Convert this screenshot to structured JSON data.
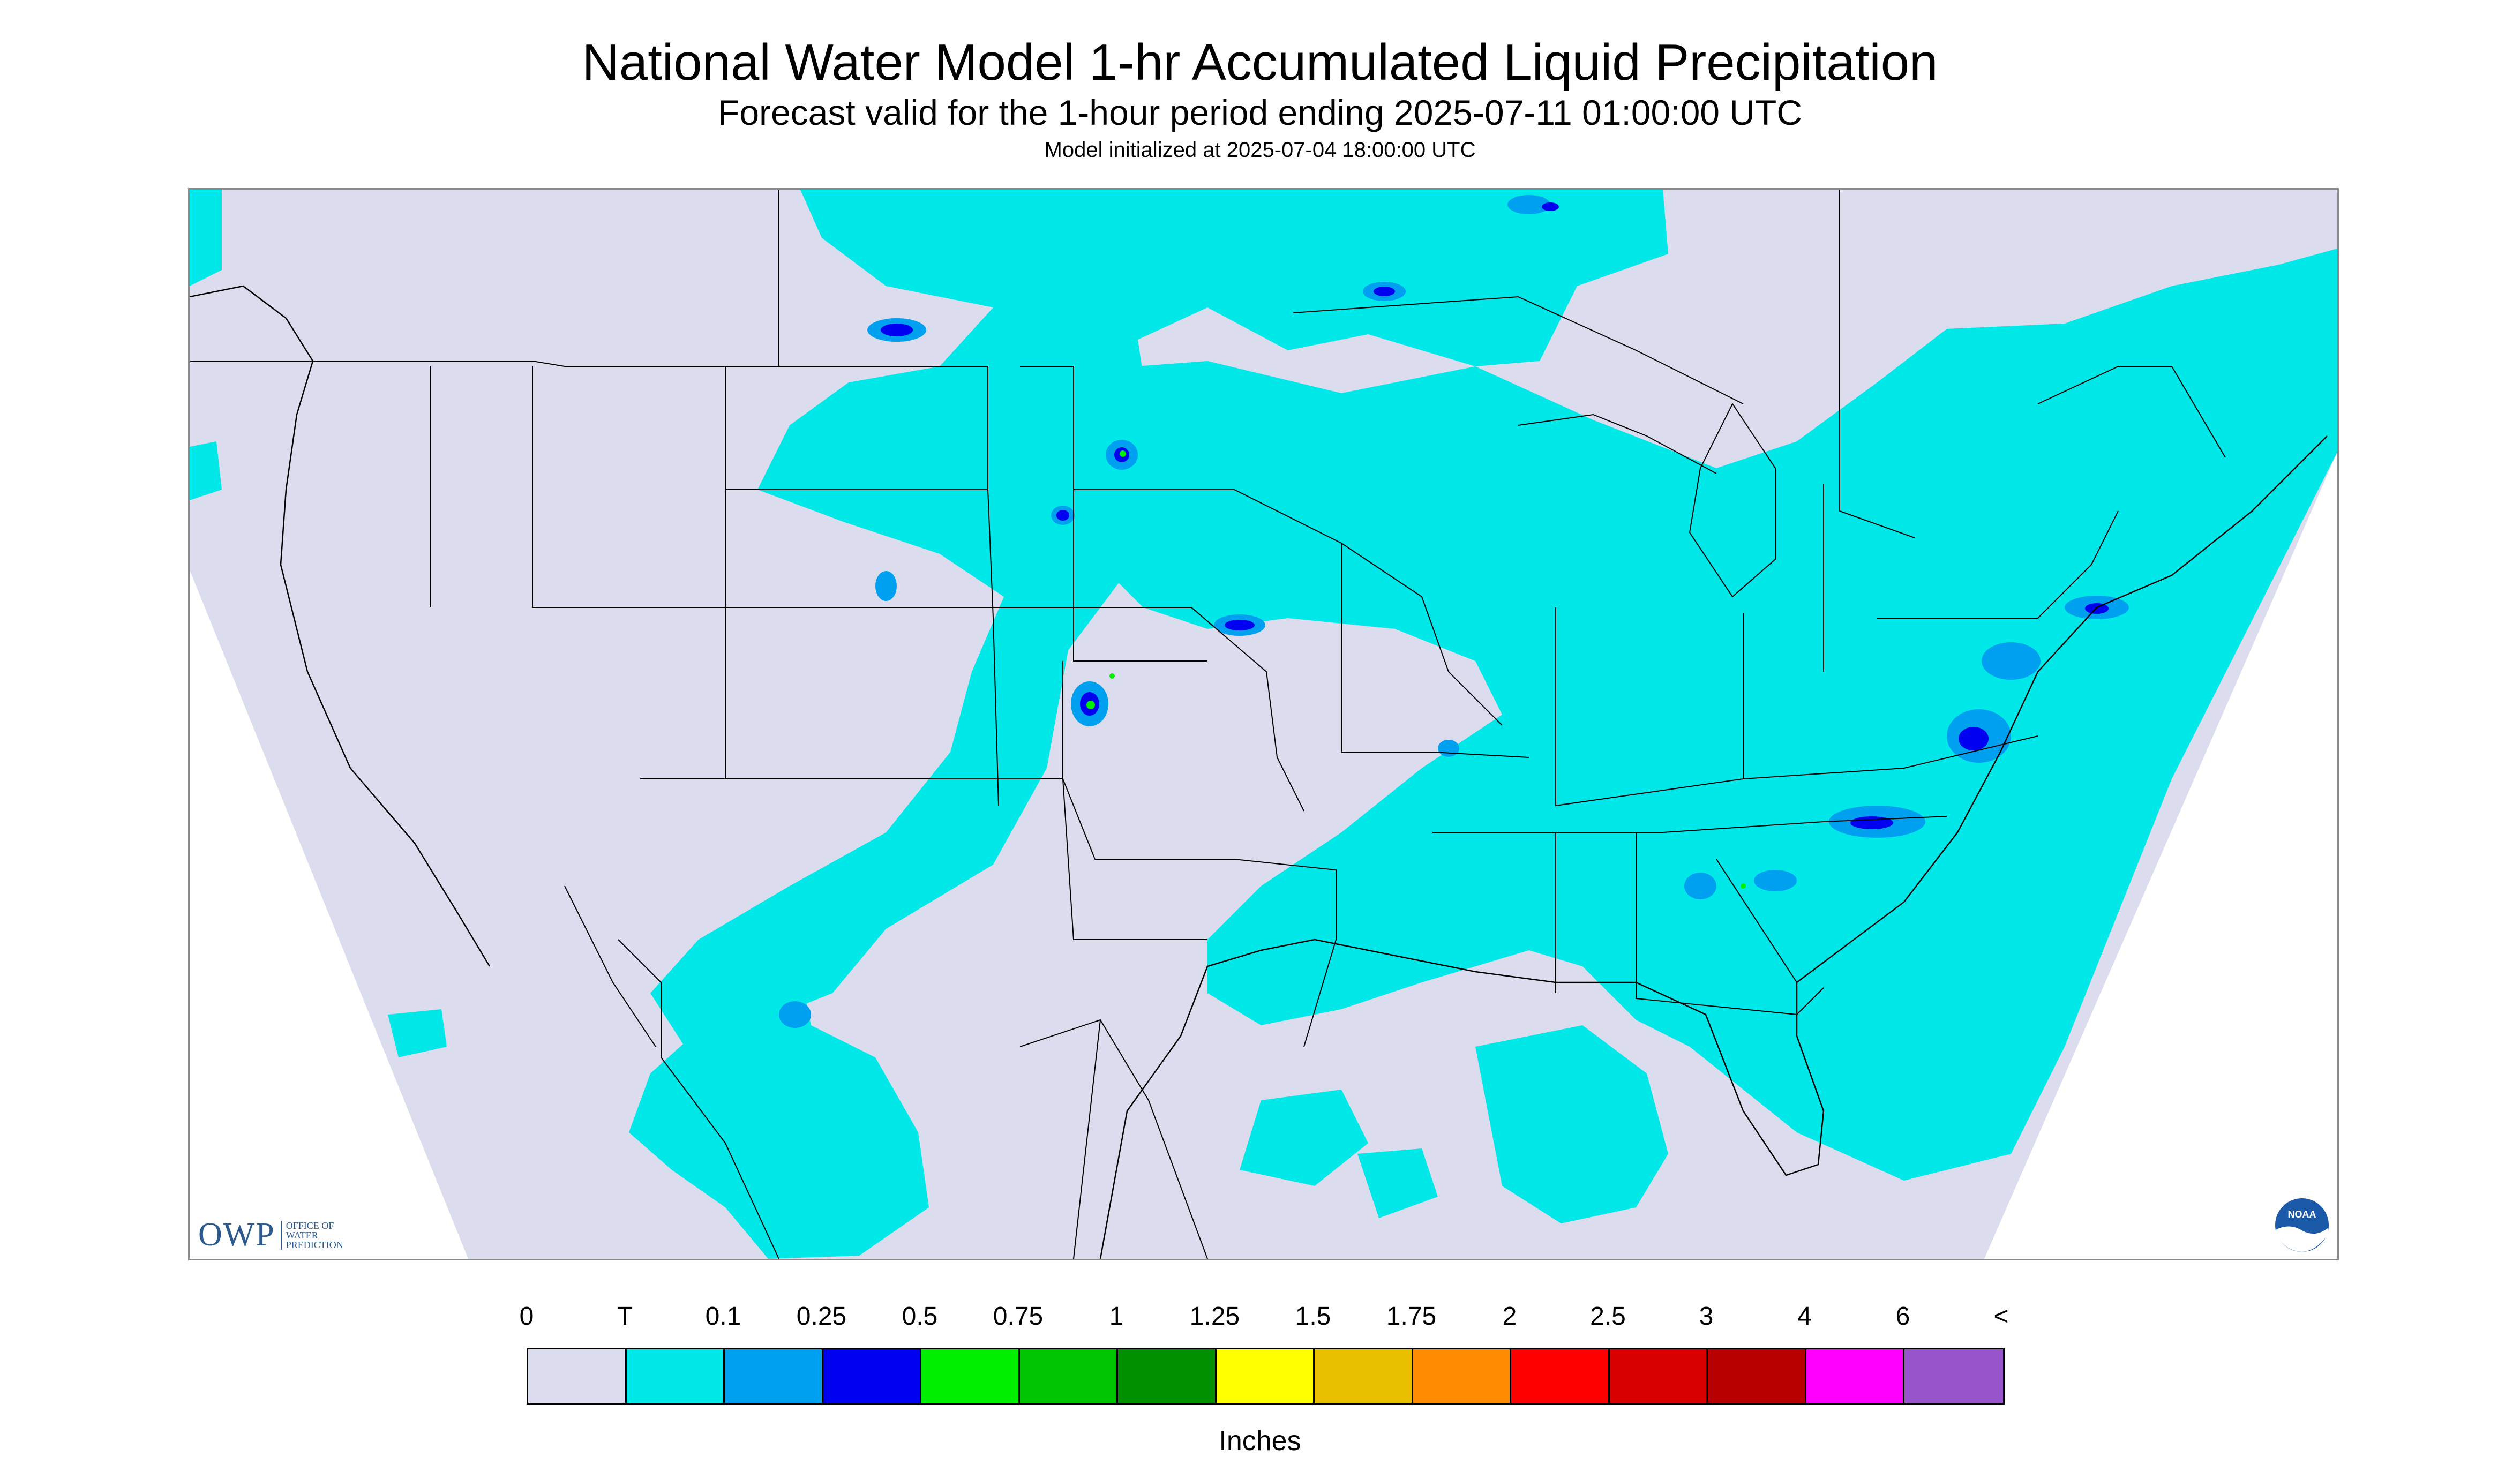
{
  "header": {
    "title": "National Water Model 1-hr Accumulated Liquid Precipitation",
    "subtitle": "Forecast valid for the 1-hour period ending 2025-07-11 01:00:00 UTC",
    "init_line": "Model initialized at 2025-07-04 18:00:00 UTC"
  },
  "map": {
    "background_color": "#dcdcef",
    "outside_domain_color": "#ffffff",
    "boundary_color": "#000000",
    "precip_base_color": "#00e8e8",
    "state_lines": "black",
    "projection_shape": "conic-trapezoid"
  },
  "logos": {
    "owp_mark": "OWP",
    "owp_text": "OFFICE OF WATER PREDICTION",
    "noaa_text": "NOAA",
    "owp_color": "#2d5a8e",
    "noaa_color": "#1a5aa8"
  },
  "legend": {
    "labels": [
      "0",
      "T",
      "0.1",
      "0.25",
      "0.5",
      "0.75",
      "1",
      "1.25",
      "1.5",
      "1.75",
      "2",
      "2.5",
      "3",
      "4",
      "6",
      "<"
    ],
    "colors": [
      "#dcdcef",
      "#00e8e8",
      "#00a0f0",
      "#0000f0",
      "#00f000",
      "#00c400",
      "#009000",
      "#ffff00",
      "#e8c000",
      "#ff8c00",
      "#ff0000",
      "#d80000",
      "#b80000",
      "#ff00ff",
      "#9955cc"
    ],
    "units": "Inches"
  }
}
